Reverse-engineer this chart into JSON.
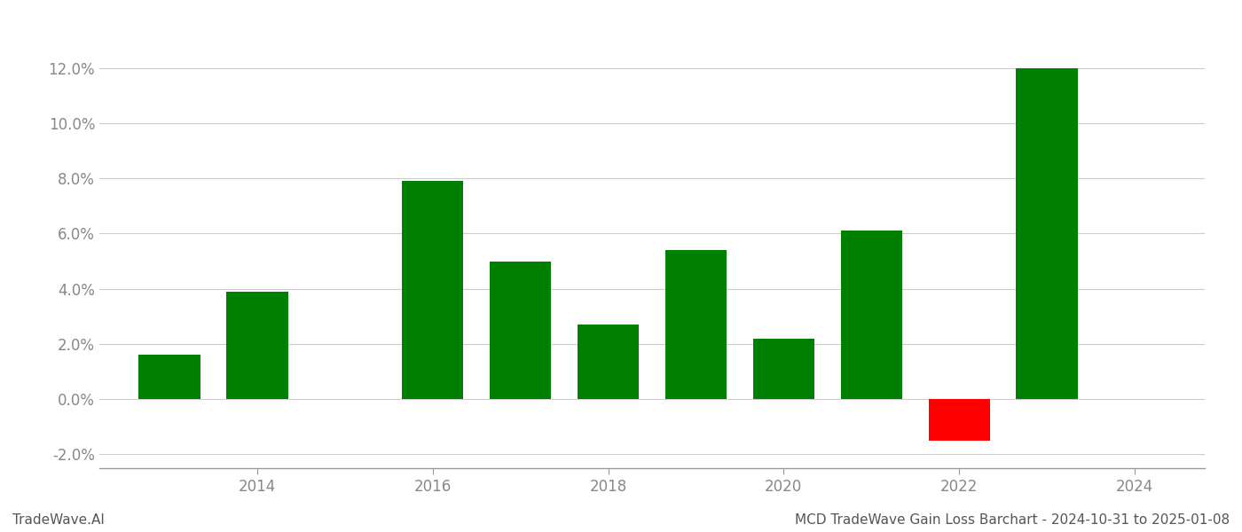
{
  "actual_years": [
    2013,
    2014,
    2016,
    2017,
    2018,
    2019,
    2020,
    2021,
    2022,
    2023
  ],
  "actual_values": [
    0.016,
    0.039,
    0.079,
    0.05,
    0.027,
    0.054,
    0.022,
    0.061,
    -0.015,
    0.12
  ],
  "actual_colors": [
    "#008000",
    "#008000",
    "#008000",
    "#008000",
    "#008000",
    "#008000",
    "#008000",
    "#008000",
    "#ff0000",
    "#008000"
  ],
  "ylim": [
    -0.025,
    0.135
  ],
  "yticks": [
    -0.02,
    0.0,
    0.02,
    0.04,
    0.06,
    0.08,
    0.1,
    0.12
  ],
  "xticks": [
    2014,
    2016,
    2018,
    2020,
    2022,
    2024
  ],
  "xlim": [
    2012.2,
    2024.8
  ],
  "bar_width": 0.7,
  "background_color": "#ffffff",
  "grid_color": "#cccccc",
  "spine_color": "#999999",
  "tick_color": "#888888",
  "text_color": "#555555",
  "footer_left": "TradeWave.AI",
  "footer_right": "MCD TradeWave Gain Loss Barchart - 2024-10-31 to 2025-01-08",
  "footer_fontsize": 11,
  "tick_fontsize": 12
}
